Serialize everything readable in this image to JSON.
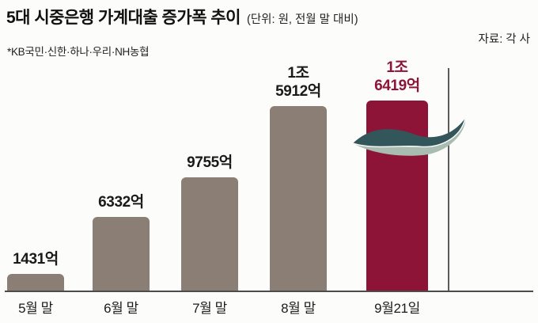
{
  "header": {
    "title": "5대 시중은행 가계대출 증가폭 추이",
    "unit_note": "(단위: 원, 전월 말 대비)",
    "source": "자료: 각 사",
    "subtitle": "*KB국민·신한·하나·우리·NH농협"
  },
  "chart_data": {
    "type": "bar",
    "title": "5대 시중은행 가계대출 증가폭 추이",
    "categories": [
      "5월 말",
      "6월 말",
      "7월 말",
      "8월 말",
      "9월21일"
    ],
    "values": [
      1431,
      6332,
      9755,
      15912,
      16419
    ],
    "value_labels": [
      "1431억",
      "6332억",
      "9755억",
      "1조\n5912억",
      "1조\n6419억"
    ],
    "unit": "억 원",
    "ylim": [
      0,
      16419
    ],
    "grid": false,
    "legend": "none",
    "bar_color": "#8a7e75",
    "highlight_color": "#8d1436",
    "highlight_index": 4,
    "axis_color": "#4c4c4c"
  },
  "decor": {
    "ribbon_dark": "#33565a",
    "ribbon_light": "#a9bcb2"
  }
}
